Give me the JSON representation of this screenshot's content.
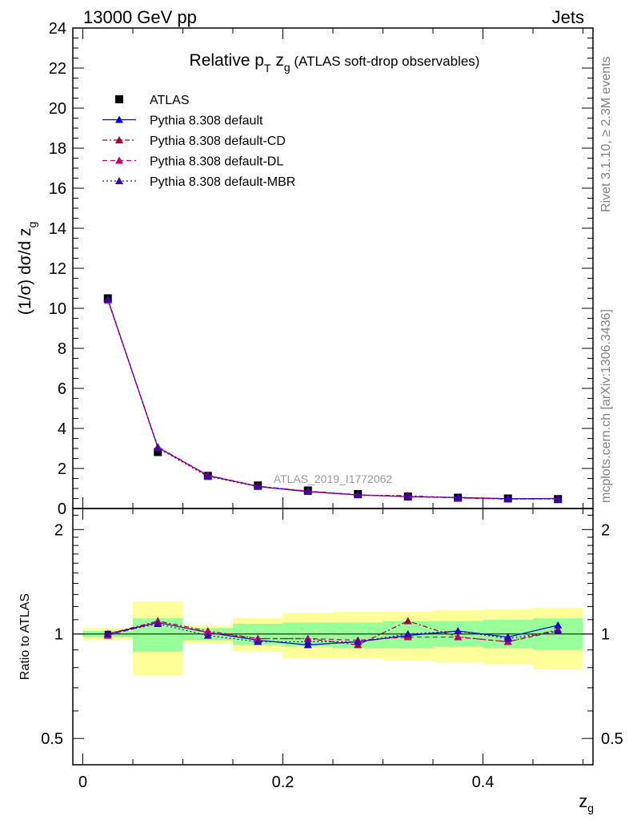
{
  "header": {
    "left": "13000 GeV pp",
    "right": "Jets"
  },
  "plot_title": {
    "main": "Relative p",
    "sub_T": "T",
    "mid": " z",
    "sub_g": "g",
    "tail": " (ATLAS soft-drop observables)"
  },
  "side": {
    "rivet": "Rivet 3.1.10, ≥ 2.3M events",
    "mcplots": "mcplots.cern.ch [arXiv:1306.3436]"
  },
  "analysis_label": "ATLAS_2019_I1772062",
  "chart_data": [
    {
      "type": "line",
      "panel": "main",
      "ylabel": "(1/σ) dσ/d z",
      "ylabel_sub": "g",
      "xlabel": "",
      "xlim": [
        -0.01,
        0.51
      ],
      "ylim": [
        0,
        24
      ],
      "yticks": [
        "0",
        "2",
        "4",
        "6",
        "8",
        "10",
        "12",
        "14",
        "16",
        "18",
        "20",
        "22",
        "24"
      ],
      "x": [
        0.025,
        0.075,
        0.125,
        0.175,
        0.225,
        0.275,
        0.325,
        0.375,
        0.425,
        0.475
      ],
      "series": [
        {
          "name": "ATLAS",
          "style": "data",
          "color": "#000000",
          "values": [
            10.5,
            2.82,
            1.63,
            1.15,
            0.9,
            0.72,
            0.6,
            0.54,
            0.5,
            0.47
          ]
        },
        {
          "name": "Pythia 8.308 default",
          "style": "solid",
          "color": "#0000dd",
          "values": [
            10.45,
            3.05,
            1.65,
            1.1,
            0.84,
            0.68,
            0.59,
            0.55,
            0.49,
            0.5
          ]
        },
        {
          "name": "Pythia 8.308 default-CD",
          "style": "dashdot",
          "color": "#a0003c",
          "values": [
            10.45,
            3.08,
            1.66,
            1.12,
            0.86,
            0.67,
            0.64,
            0.53,
            0.47,
            0.49
          ]
        },
        {
          "name": "Pythia 8.308 default-DL",
          "style": "dashed",
          "color": "#c0006e",
          "values": [
            10.4,
            3.06,
            1.64,
            1.11,
            0.87,
            0.69,
            0.59,
            0.53,
            0.47,
            0.48
          ]
        },
        {
          "name": "Pythia 8.308 default-MBR",
          "style": "dotted",
          "color": "#3c00b4",
          "values": [
            10.45,
            3.02,
            1.6,
            1.09,
            0.85,
            0.68,
            0.6,
            0.55,
            0.48,
            0.48
          ]
        }
      ]
    },
    {
      "type": "line",
      "panel": "ratio",
      "ylabel": "Ratio to ATLAS",
      "xlabel": "z",
      "xlabel_sub": "g",
      "xlim": [
        -0.01,
        0.51
      ],
      "ylim": [
        0.42,
        2.3
      ],
      "log_y": true,
      "yticks": [
        "0.5",
        "1",
        "2"
      ],
      "xticks": [
        "0",
        "0.2",
        "0.4"
      ],
      "x": [
        0.025,
        0.075,
        0.125,
        0.175,
        0.225,
        0.275,
        0.325,
        0.375,
        0.425,
        0.475
      ],
      "bands": {
        "inner_color": "#99ff99",
        "outer_color": "#ffff99",
        "inner_low": [
          0.98,
          0.89,
          0.96,
          0.93,
          0.92,
          0.91,
          0.91,
          0.92,
          0.91,
          0.9
        ],
        "inner_high": [
          1.02,
          1.11,
          1.04,
          1.07,
          1.08,
          1.08,
          1.09,
          1.09,
          1.1,
          1.11
        ],
        "outer_low": [
          0.96,
          0.76,
          0.94,
          0.89,
          0.85,
          0.85,
          0.84,
          0.83,
          0.82,
          0.79
        ],
        "outer_high": [
          1.04,
          1.24,
          1.06,
          1.11,
          1.15,
          1.16,
          1.16,
          1.17,
          1.18,
          1.19
        ]
      },
      "series": [
        {
          "name": "Pythia 8.308 default",
          "style": "solid",
          "color": "#0000dd",
          "values": [
            1.0,
            1.08,
            1.01,
            0.96,
            0.93,
            0.95,
            0.99,
            1.02,
            0.98,
            1.06
          ]
        },
        {
          "name": "Pythia 8.308 default-CD",
          "style": "dashdot",
          "color": "#a0003c",
          "values": [
            1.0,
            1.09,
            1.02,
            0.97,
            0.97,
            0.93,
            1.09,
            0.98,
            0.95,
            1.03
          ]
        },
        {
          "name": "Pythia 8.308 default-DL",
          "style": "dashed",
          "color": "#c0006e",
          "values": [
            0.99,
            1.08,
            1.01,
            0.97,
            0.97,
            0.96,
            0.98,
            0.98,
            0.95,
            1.02
          ]
        },
        {
          "name": "Pythia 8.308 default-MBR",
          "style": "dotted",
          "color": "#3c00b4",
          "values": [
            1.0,
            1.07,
            0.99,
            0.95,
            0.95,
            0.95,
            1.0,
            1.02,
            0.97,
            1.02
          ]
        }
      ]
    }
  ]
}
